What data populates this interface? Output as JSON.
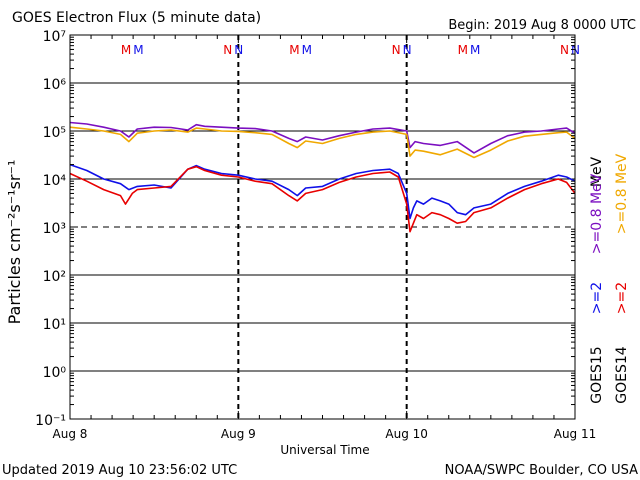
{
  "header": {
    "title": "GOES Electron Flux (5 minute data)",
    "begin": "Begin: 2019 Aug 8 0000 UTC"
  },
  "footer": {
    "updated": "Updated 2019 Aug 10 23:56:02 UTC",
    "credit": "NOAA/SWPC Boulder, CO USA"
  },
  "colors": {
    "goes15_high": "#7b0fc0",
    "goes14_high": "#f0a800",
    "goes15_low": "#1010e8",
    "goes14_low": "#e80000",
    "axis": "#000000"
  },
  "right_labels": {
    "goes15": "GOES15",
    "goes14": "GOES14",
    "g15_low": ">=2",
    "g14_low": ">=2",
    "g15_high": ">=0.8 MeV",
    "g14_high": ">=0.8 MeV",
    "low_unit": "MeV"
  },
  "markers": [
    {
      "day": 0.37,
      "g14": "M",
      "g15": "M"
    },
    {
      "day": 0.97,
      "g14": "N",
      "g15": "N"
    },
    {
      "day": 1.37,
      "g14": "M",
      "g15": "M"
    },
    {
      "day": 1.97,
      "g14": "N",
      "g15": "N"
    },
    {
      "day": 2.37,
      "g14": "M",
      "g15": "M"
    },
    {
      "day": 2.97,
      "g14": "N",
      "g15": "N"
    }
  ],
  "chart_data": {
    "type": "line",
    "xlabel": "Universal Time",
    "ylabel": "Particles cm⁻²s⁻¹sr⁻¹",
    "xlim": [
      0,
      3
    ],
    "x_tick_labels": [
      "Aug 8",
      "Aug 9",
      "Aug 10",
      "Aug 11"
    ],
    "y_scale": "log",
    "ylim": [
      0.1,
      10000000
    ],
    "y_tick_labels": [
      "10⁻¹",
      "10⁰",
      "10¹",
      "10²",
      "10³",
      "10⁴",
      "10⁵",
      "10⁶",
      "10⁷"
    ],
    "threshold": 1000,
    "day_dividers": [
      1,
      2
    ],
    "x_unit": "days since Aug 8 0000 UTC",
    "series": [
      {
        "name": "GOES15 >=0.8 MeV",
        "color": "#7b0fc0",
        "x": [
          0,
          0.1,
          0.2,
          0.3,
          0.35,
          0.4,
          0.5,
          0.6,
          0.7,
          0.75,
          0.8,
          0.9,
          1.0,
          1.1,
          1.2,
          1.3,
          1.35,
          1.4,
          1.5,
          1.6,
          1.7,
          1.8,
          1.9,
          2.0,
          2.02,
          2.05,
          2.1,
          2.2,
          2.3,
          2.4,
          2.5,
          2.6,
          2.7,
          2.8,
          2.9,
          2.95,
          3.0
        ],
        "values": [
          150000,
          140000,
          120000,
          100000,
          75000,
          110000,
          120000,
          118000,
          105000,
          135000,
          125000,
          120000,
          115000,
          112000,
          100000,
          70000,
          60000,
          75000,
          65000,
          80000,
          95000,
          110000,
          115000,
          100000,
          45000,
          60000,
          55000,
          50000,
          60000,
          35000,
          55000,
          80000,
          95000,
          100000,
          110000,
          115000,
          90000
        ]
      },
      {
        "name": "GOES14 >=0.8 MeV",
        "color": "#f0a800",
        "x": [
          0,
          0.1,
          0.2,
          0.3,
          0.35,
          0.4,
          0.5,
          0.6,
          0.7,
          0.75,
          0.8,
          0.9,
          1.0,
          1.1,
          1.2,
          1.3,
          1.35,
          1.4,
          1.5,
          1.6,
          1.7,
          1.8,
          1.9,
          2.0,
          2.02,
          2.05,
          2.1,
          2.2,
          2.3,
          2.4,
          2.5,
          2.6,
          2.7,
          2.8,
          2.9,
          2.95,
          3.0
        ],
        "values": [
          120000,
          110000,
          100000,
          85000,
          60000,
          90000,
          100000,
          105000,
          95000,
          115000,
          110000,
          100000,
          98000,
          92000,
          85000,
          55000,
          45000,
          62000,
          55000,
          70000,
          85000,
          95000,
          100000,
          85000,
          30000,
          40000,
          38000,
          32000,
          42000,
          28000,
          40000,
          62000,
          78000,
          85000,
          92000,
          95000,
          70000
        ]
      },
      {
        "name": "GOES15 >=2 MeV",
        "color": "#1010e8",
        "x": [
          0,
          0.1,
          0.2,
          0.3,
          0.35,
          0.4,
          0.5,
          0.6,
          0.7,
          0.75,
          0.8,
          0.9,
          1.0,
          1.1,
          1.2,
          1.3,
          1.35,
          1.4,
          1.5,
          1.6,
          1.7,
          1.8,
          1.9,
          1.95,
          2.0,
          2.02,
          2.04,
          2.06,
          2.1,
          2.15,
          2.2,
          2.25,
          2.3,
          2.35,
          2.4,
          2.5,
          2.6,
          2.7,
          2.8,
          2.9,
          2.95,
          3.0
        ],
        "values": [
          20000,
          15000,
          10000,
          8000,
          6000,
          7000,
          7500,
          6500,
          16000,
          19000,
          16000,
          13000,
          12000,
          10000,
          9000,
          6000,
          4500,
          6500,
          7000,
          10000,
          13000,
          15000,
          16000,
          13000,
          5000,
          1500,
          2500,
          3500,
          3000,
          4000,
          3500,
          3000,
          2000,
          1800,
          2500,
          3000,
          5000,
          7000,
          9000,
          12000,
          11000,
          9000
        ]
      },
      {
        "name": "GOES14 >=2 MeV",
        "color": "#e80000",
        "x": [
          0,
          0.1,
          0.2,
          0.3,
          0.33,
          0.37,
          0.4,
          0.5,
          0.6,
          0.7,
          0.75,
          0.8,
          0.9,
          1.0,
          1.1,
          1.2,
          1.3,
          1.35,
          1.4,
          1.5,
          1.6,
          1.7,
          1.8,
          1.9,
          1.95,
          2.0,
          2.02,
          2.04,
          2.06,
          2.1,
          2.15,
          2.2,
          2.25,
          2.3,
          2.35,
          2.4,
          2.5,
          2.6,
          2.7,
          2.8,
          2.9,
          2.95,
          3.0
        ],
        "values": [
          13000,
          9000,
          6000,
          4500,
          3000,
          5000,
          6000,
          6500,
          7000,
          16000,
          18000,
          15000,
          12000,
          11000,
          9000,
          8000,
          4500,
          3500,
          5000,
          6000,
          8500,
          11000,
          13000,
          14000,
          11000,
          3000,
          800,
          1200,
          1800,
          1500,
          2000,
          1800,
          1500,
          1200,
          1300,
          2000,
          2500,
          4000,
          6000,
          8000,
          10000,
          8500,
          5000
        ]
      }
    ]
  }
}
